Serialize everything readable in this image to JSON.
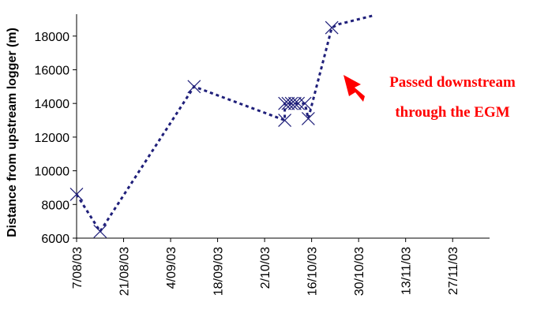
{
  "chart_data": {
    "type": "line",
    "title": "",
    "xlabel": "",
    "ylabel": "Distance from upstream logger (m)",
    "ylim": [
      6000,
      19300
    ],
    "y_ticks": [
      6000,
      8000,
      10000,
      12000,
      14000,
      16000,
      18000
    ],
    "y_tick_labels": [
      "6000",
      "8000",
      "10000",
      "12000",
      "14000",
      "16000",
      "18000"
    ],
    "xlim": [
      "2003-08-07",
      "2003-12-08"
    ],
    "x_ticks": [
      "2003-08-07",
      "2003-08-21",
      "2003-09-04",
      "2003-09-18",
      "2003-10-02",
      "2003-10-16",
      "2003-10-30",
      "2003-11-13",
      "2003-11-27"
    ],
    "x_tick_labels": [
      "7/08/03",
      "21/08/03",
      "4/09/03",
      "18/09/03",
      "2/10/03",
      "16/10/03",
      "30/10/03",
      "13/11/03",
      "27/11/03"
    ],
    "grid": false,
    "line_style": "dotted",
    "series": [
      {
        "color": "#1f1f7a",
        "points": [
          {
            "x": "2003-08-07",
            "y": 8600
          },
          {
            "x": "2003-08-14",
            "y": 6400
          },
          {
            "x": "2003-09-11",
            "y": 15000
          },
          {
            "x": "2003-10-08",
            "y": 13000
          },
          {
            "x": "2003-10-08",
            "y": 14000
          },
          {
            "x": "2003-10-09",
            "y": 14000
          },
          {
            "x": "2003-10-10",
            "y": 14000
          },
          {
            "x": "2003-10-11",
            "y": 14000
          },
          {
            "x": "2003-10-12",
            "y": 14000
          },
          {
            "x": "2003-10-14",
            "y": 14000
          },
          {
            "x": "2003-10-15",
            "y": 13100
          },
          {
            "x": "2003-10-22",
            "y": 18500
          },
          {
            "x": "2003-10-24",
            "y": 18700
          },
          {
            "x": "2003-11-03",
            "y": 19200
          }
        ],
        "marker_count": 12
      }
    ],
    "annotation": {
      "lines": [
        "Passed downstream",
        "through the EGM"
      ],
      "color": "#ff0000",
      "arrow_color": "#ff0000"
    }
  }
}
